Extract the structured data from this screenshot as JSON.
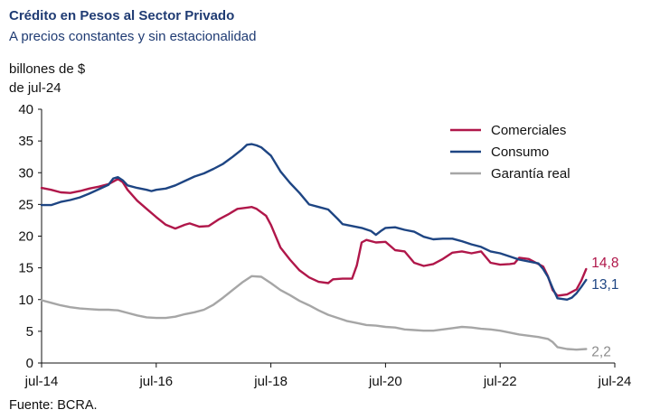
{
  "title": "Crédito en Pesos al Sector Privado",
  "subtitle": "A precios constantes y sin estacionalidad",
  "unit_line1": "billones de $",
  "unit_line2": "de jul-24",
  "source": "Fuente: BCRA.",
  "colors": {
    "Comerciales": "#b0174a",
    "Consumo": "#1e4583",
    "Garantía real": "#a6a6a6"
  },
  "chart_data": {
    "type": "line",
    "ylim": [
      0,
      40
    ],
    "yticks": [
      0,
      5,
      10,
      15,
      20,
      25,
      30,
      35,
      40
    ],
    "xlim": [
      0,
      120
    ],
    "xtick_labels": [
      "jul-14",
      "jul-16",
      "jul-18",
      "jul-20",
      "jul-22",
      "jul-24"
    ],
    "xtick_positions": [
      0,
      24,
      48,
      72,
      96,
      120
    ],
    "legend_position": "top-right",
    "x_labels_note": "x values are months elapsed since jul-14",
    "series": [
      {
        "name": "Comerciales",
        "end_label": "14,8",
        "points": [
          [
            0,
            27.6
          ],
          [
            2,
            27.3
          ],
          [
            4,
            26.9
          ],
          [
            6,
            26.8
          ],
          [
            8,
            27.1
          ],
          [
            10,
            27.5
          ],
          [
            12,
            27.8
          ],
          [
            14,
            28.2
          ],
          [
            16,
            29.0
          ],
          [
            17,
            28.5
          ],
          [
            18,
            27.3
          ],
          [
            20,
            25.6
          ],
          [
            22,
            24.3
          ],
          [
            24,
            23.0
          ],
          [
            26,
            21.8
          ],
          [
            28,
            21.2
          ],
          [
            30,
            21.8
          ],
          [
            31,
            22.0
          ],
          [
            33,
            21.5
          ],
          [
            35,
            21.6
          ],
          [
            37,
            22.6
          ],
          [
            39,
            23.4
          ],
          [
            41,
            24.3
          ],
          [
            43,
            24.5
          ],
          [
            44,
            24.6
          ],
          [
            45,
            24.3
          ],
          [
            47,
            23.2
          ],
          [
            48,
            21.8
          ],
          [
            50,
            18.2
          ],
          [
            52,
            16.3
          ],
          [
            54,
            14.6
          ],
          [
            56,
            13.5
          ],
          [
            58,
            12.8
          ],
          [
            60,
            12.6
          ],
          [
            61,
            13.2
          ],
          [
            63,
            13.3
          ],
          [
            65,
            13.3
          ],
          [
            66,
            15.4
          ],
          [
            67,
            19.0
          ],
          [
            68,
            19.4
          ],
          [
            70,
            19.0
          ],
          [
            72,
            19.1
          ],
          [
            74,
            17.8
          ],
          [
            76,
            17.6
          ],
          [
            78,
            15.8
          ],
          [
            80,
            15.3
          ],
          [
            82,
            15.6
          ],
          [
            84,
            16.4
          ],
          [
            86,
            17.4
          ],
          [
            88,
            17.6
          ],
          [
            90,
            17.3
          ],
          [
            92,
            17.6
          ],
          [
            94,
            15.8
          ],
          [
            96,
            15.5
          ],
          [
            98,
            15.6
          ],
          [
            99,
            15.7
          ],
          [
            100,
            16.6
          ],
          [
            102,
            16.4
          ],
          [
            104,
            15.6
          ],
          [
            105,
            15.2
          ],
          [
            106,
            13.7
          ],
          [
            107,
            11.5
          ],
          [
            108,
            10.6
          ],
          [
            110,
            10.8
          ],
          [
            112,
            11.6
          ],
          [
            113,
            13.0
          ],
          [
            114,
            14.8
          ]
        ]
      },
      {
        "name": "Consumo",
        "end_label": "13,1",
        "points": [
          [
            0,
            24.9
          ],
          [
            2,
            24.9
          ],
          [
            4,
            25.4
          ],
          [
            6,
            25.7
          ],
          [
            8,
            26.1
          ],
          [
            10,
            26.7
          ],
          [
            12,
            27.4
          ],
          [
            14,
            28.1
          ],
          [
            15,
            29.1
          ],
          [
            16,
            29.3
          ],
          [
            17,
            28.8
          ],
          [
            18,
            28.0
          ],
          [
            20,
            27.6
          ],
          [
            22,
            27.3
          ],
          [
            23,
            27.1
          ],
          [
            24,
            27.3
          ],
          [
            26,
            27.5
          ],
          [
            28,
            28.0
          ],
          [
            30,
            28.7
          ],
          [
            32,
            29.4
          ],
          [
            34,
            29.9
          ],
          [
            36,
            30.6
          ],
          [
            38,
            31.4
          ],
          [
            40,
            32.5
          ],
          [
            42,
            33.7
          ],
          [
            43,
            34.4
          ],
          [
            44,
            34.5
          ],
          [
            45,
            34.3
          ],
          [
            46,
            34.0
          ],
          [
            48,
            32.7
          ],
          [
            50,
            30.2
          ],
          [
            52,
            28.4
          ],
          [
            54,
            26.8
          ],
          [
            56,
            25.0
          ],
          [
            58,
            24.6
          ],
          [
            60,
            24.2
          ],
          [
            62,
            22.7
          ],
          [
            63,
            21.9
          ],
          [
            65,
            21.6
          ],
          [
            67,
            21.3
          ],
          [
            69,
            20.8
          ],
          [
            70,
            20.2
          ],
          [
            71,
            20.8
          ],
          [
            72,
            21.3
          ],
          [
            74,
            21.4
          ],
          [
            76,
            21.0
          ],
          [
            78,
            20.7
          ],
          [
            80,
            19.9
          ],
          [
            82,
            19.5
          ],
          [
            84,
            19.6
          ],
          [
            86,
            19.6
          ],
          [
            88,
            19.2
          ],
          [
            90,
            18.7
          ],
          [
            92,
            18.3
          ],
          [
            94,
            17.6
          ],
          [
            96,
            17.3
          ],
          [
            98,
            16.8
          ],
          [
            100,
            16.3
          ],
          [
            102,
            16.0
          ],
          [
            104,
            15.7
          ],
          [
            105,
            14.8
          ],
          [
            106,
            13.6
          ],
          [
            107,
            11.8
          ],
          [
            108,
            10.2
          ],
          [
            110,
            10.0
          ],
          [
            111,
            10.3
          ],
          [
            112,
            11.0
          ],
          [
            113,
            12.0
          ],
          [
            114,
            13.1
          ]
        ]
      },
      {
        "name": "Garantía real",
        "end_label": "2,2",
        "points": [
          [
            0,
            9.9
          ],
          [
            2,
            9.5
          ],
          [
            4,
            9.1
          ],
          [
            6,
            8.8
          ],
          [
            8,
            8.6
          ],
          [
            10,
            8.5
          ],
          [
            12,
            8.4
          ],
          [
            14,
            8.4
          ],
          [
            16,
            8.3
          ],
          [
            18,
            7.9
          ],
          [
            20,
            7.5
          ],
          [
            22,
            7.2
          ],
          [
            24,
            7.1
          ],
          [
            26,
            7.1
          ],
          [
            28,
            7.3
          ],
          [
            30,
            7.7
          ],
          [
            32,
            8.0
          ],
          [
            34,
            8.4
          ],
          [
            36,
            9.2
          ],
          [
            38,
            10.3
          ],
          [
            40,
            11.5
          ],
          [
            42,
            12.7
          ],
          [
            44,
            13.7
          ],
          [
            46,
            13.6
          ],
          [
            48,
            12.6
          ],
          [
            50,
            11.5
          ],
          [
            52,
            10.7
          ],
          [
            54,
            9.8
          ],
          [
            56,
            9.1
          ],
          [
            58,
            8.3
          ],
          [
            60,
            7.6
          ],
          [
            62,
            7.1
          ],
          [
            64,
            6.6
          ],
          [
            66,
            6.3
          ],
          [
            68,
            6.0
          ],
          [
            70,
            5.9
          ],
          [
            72,
            5.7
          ],
          [
            74,
            5.6
          ],
          [
            76,
            5.3
          ],
          [
            78,
            5.2
          ],
          [
            80,
            5.1
          ],
          [
            82,
            5.1
          ],
          [
            84,
            5.3
          ],
          [
            86,
            5.5
          ],
          [
            88,
            5.7
          ],
          [
            90,
            5.6
          ],
          [
            92,
            5.4
          ],
          [
            94,
            5.3
          ],
          [
            96,
            5.1
          ],
          [
            98,
            4.8
          ],
          [
            100,
            4.5
          ],
          [
            102,
            4.3
          ],
          [
            104,
            4.1
          ],
          [
            106,
            3.8
          ],
          [
            107,
            3.3
          ],
          [
            108,
            2.5
          ],
          [
            110,
            2.2
          ],
          [
            112,
            2.1
          ],
          [
            114,
            2.2
          ]
        ]
      }
    ]
  }
}
